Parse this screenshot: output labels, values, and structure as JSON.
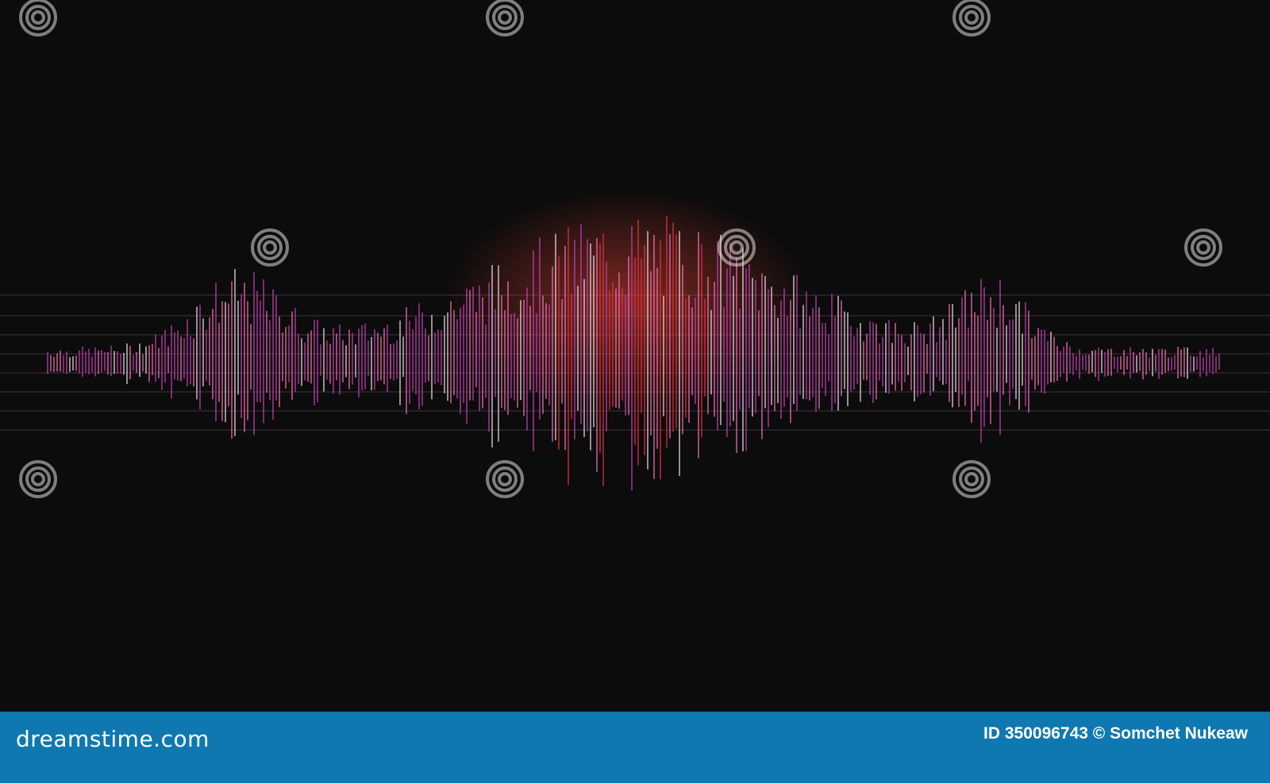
{
  "image": {
    "subject": "waveform",
    "colors": {
      "background": "#0c0c0c",
      "magenta": "#c040b0",
      "pink": "#f070b0",
      "red": "#e03040",
      "white": "#e8d8e0"
    },
    "watermark": "dreamstime"
  },
  "footer": {
    "brand": "dreamstime.com",
    "credit": "ID 350096743 © Somchet Nukeaw",
    "background": "#1078b0"
  }
}
